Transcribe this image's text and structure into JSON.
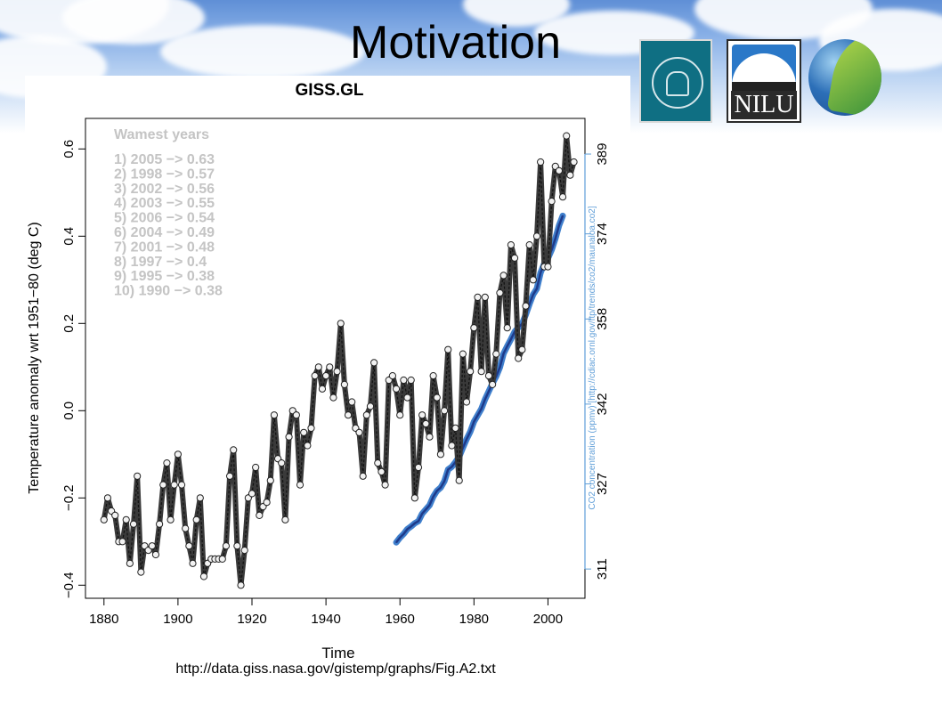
{
  "slide": {
    "title": "Motivation"
  },
  "logos": [
    {
      "name": "Universitas Bergensis"
    },
    {
      "name": "NILU",
      "text": "NILU"
    },
    {
      "name": "globe-leaf"
    }
  ],
  "chart_data": {
    "type": "line",
    "title": "GISS.GL",
    "xlabel": "Time",
    "ylabel": "Temperature anomaly wrt 1951−80 (deg C)",
    "y2label": "CO2 concentration (ppmv) [http://cdiac.ornl.gov/ftp/trends/co2/maunaloa.co2]",
    "source": "http://data.giss.nasa.gov/gistemp/graphs/Fig.A2.txt",
    "xlim": [
      1875,
      2010
    ],
    "ylim": [
      -0.43,
      0.67
    ],
    "y2lim": [
      305.5,
      395.7
    ],
    "xticks": [
      "1880",
      "1900",
      "1920",
      "1940",
      "1960",
      "1980",
      "2000"
    ],
    "yticks": [
      "−0.4",
      "−0.2",
      "0.0",
      "0.2",
      "0.4",
      "0.6"
    ],
    "y2ticks": [
      "311",
      "327",
      "342",
      "358",
      "374",
      "389"
    ],
    "annotation": {
      "heading": "Wamest years",
      "lines": [
        "1) 2005 −> 0.63",
        "2) 1998 −> 0.57",
        "3) 2002 −> 0.56",
        "4) 2003 −> 0.55",
        "5) 2006 −> 0.54",
        "6) 2004 −> 0.49",
        "7) 2001 −> 0.48",
        "8) 1997 −> 0.4",
        "9) 1995 −> 0.38",
        "10) 1990 −> 0.38"
      ]
    },
    "series": [
      {
        "axis": "left",
        "color": "#3a3a3a",
        "x": [
          1880,
          1881,
          1882,
          1883,
          1884,
          1885,
          1886,
          1887,
          1888,
          1889,
          1890,
          1891,
          1892,
          1893,
          1894,
          1895,
          1896,
          1897,
          1898,
          1899,
          1900,
          1901,
          1902,
          1903,
          1904,
          1905,
          1906,
          1907,
          1908,
          1909,
          1910,
          1911,
          1912,
          1913,
          1914,
          1915,
          1916,
          1917,
          1918,
          1919,
          1920,
          1921,
          1922,
          1923,
          1924,
          1925,
          1926,
          1927,
          1928,
          1929,
          1930,
          1931,
          1932,
          1933,
          1934,
          1935,
          1936,
          1937,
          1938,
          1939,
          1940,
          1941,
          1942,
          1943,
          1944,
          1945,
          1946,
          1947,
          1948,
          1949,
          1950,
          1951,
          1952,
          1953,
          1954,
          1955,
          1956,
          1957,
          1958,
          1959,
          1960,
          1961,
          1962,
          1963,
          1964,
          1965,
          1966,
          1967,
          1968,
          1969,
          1970,
          1971,
          1972,
          1973,
          1974,
          1975,
          1976,
          1977,
          1978,
          1979,
          1980,
          1981,
          1982,
          1983,
          1984,
          1985,
          1986,
          1987,
          1988,
          1989,
          1990,
          1991,
          1992,
          1993,
          1994,
          1995,
          1996,
          1997,
          1998,
          1999,
          2000,
          2001,
          2002,
          2003,
          2004,
          2005,
          2006,
          2007
        ],
        "values": [
          -0.25,
          -0.2,
          -0.23,
          -0.24,
          -0.3,
          -0.3,
          -0.25,
          -0.35,
          -0.26,
          -0.15,
          -0.37,
          -0.31,
          -0.32,
          -0.31,
          -0.33,
          -0.26,
          -0.17,
          -0.12,
          -0.25,
          -0.17,
          -0.1,
          -0.17,
          -0.27,
          -0.31,
          -0.35,
          -0.25,
          -0.2,
          -0.38,
          -0.35,
          -0.34,
          -0.34,
          -0.34,
          -0.34,
          -0.31,
          -0.15,
          -0.09,
          -0.31,
          -0.4,
          -0.32,
          -0.2,
          -0.19,
          -0.13,
          -0.24,
          -0.22,
          -0.21,
          -0.16,
          -0.01,
          -0.11,
          -0.12,
          -0.25,
          -0.06,
          0.0,
          -0.01,
          -0.17,
          -0.05,
          -0.08,
          -0.04,
          0.08,
          0.1,
          0.05,
          0.08,
          0.1,
          0.03,
          0.09,
          0.2,
          0.06,
          -0.01,
          0.02,
          -0.04,
          -0.05,
          -0.15,
          -0.01,
          0.01,
          0.11,
          -0.12,
          -0.14,
          -0.17,
          0.07,
          0.08,
          0.05,
          -0.01,
          0.07,
          0.03,
          0.07,
          -0.2,
          -0.13,
          -0.01,
          -0.03,
          -0.06,
          0.08,
          0.03,
          -0.1,
          0.0,
          0.14,
          -0.08,
          -0.04,
          -0.16,
          0.13,
          0.02,
          0.09,
          0.19,
          0.26,
          0.09,
          0.26,
          0.08,
          0.06,
          0.13,
          0.27,
          0.31,
          0.19,
          0.38,
          0.35,
          0.12,
          0.14,
          0.24,
          0.38,
          0.3,
          0.4,
          0.57,
          0.33,
          0.33,
          0.48,
          0.56,
          0.55,
          0.49,
          0.63,
          0.54,
          0.57
        ]
      },
      {
        "axis": "right",
        "color": "#3f7fcc",
        "x": [
          1959,
          1960,
          1961,
          1962,
          1963,
          1964,
          1965,
          1966,
          1967,
          1968,
          1969,
          1970,
          1971,
          1972,
          1973,
          1974,
          1975,
          1976,
          1977,
          1978,
          1979,
          1980,
          1981,
          1982,
          1983,
          1984,
          1985,
          1986,
          1987,
          1988,
          1989,
          1990,
          1991,
          1992,
          1993,
          1994,
          1995,
          1996,
          1997,
          1998,
          1999,
          2000,
          2001,
          2002,
          2003,
          2004
        ],
        "values": [
          316.0,
          316.9,
          317.6,
          318.5,
          319.0,
          319.6,
          320.0,
          321.4,
          322.2,
          323.0,
          324.6,
          325.7,
          326.3,
          327.5,
          329.7,
          330.2,
          331.1,
          332.1,
          333.8,
          335.4,
          336.8,
          338.7,
          339.9,
          341.1,
          342.9,
          344.4,
          345.9,
          347.2,
          348.9,
          351.5,
          352.9,
          354.2,
          355.6,
          356.4,
          357.1,
          358.8,
          360.8,
          362.6,
          363.7,
          366.7,
          368.4,
          369.4,
          371.0,
          373.1,
          375.6,
          377.4
        ]
      }
    ]
  }
}
